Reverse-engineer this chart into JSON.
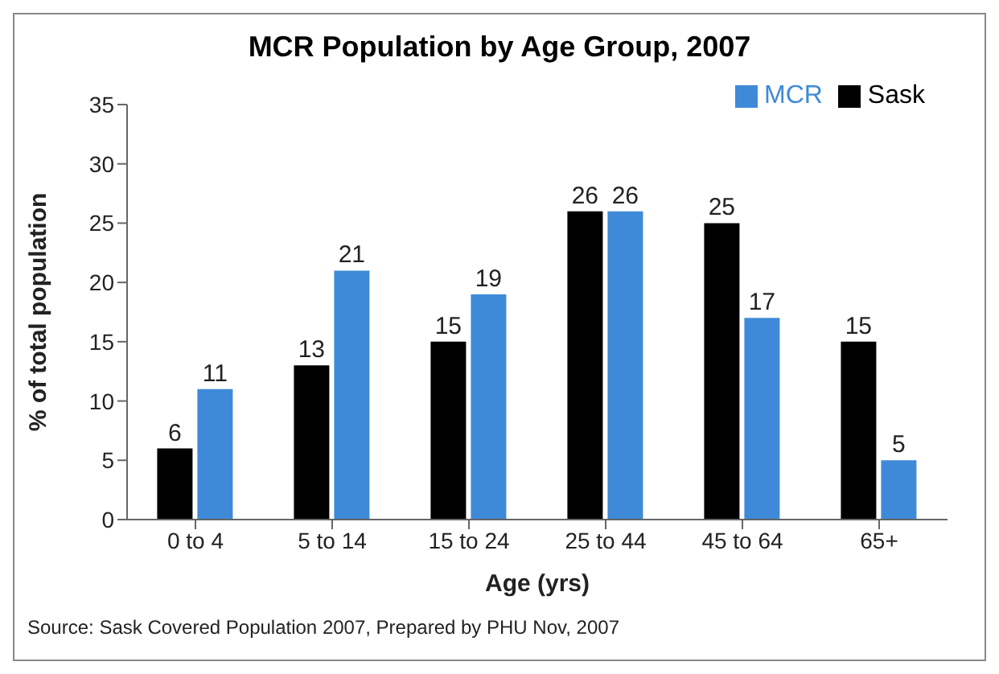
{
  "chart_data": {
    "type": "bar",
    "title": "MCR Population by Age Group, 2007",
    "xlabel": "Age (yrs)",
    "ylabel": "% of total population",
    "categories": [
      "0 to 4",
      "5 to 14",
      "15 to 24",
      "25 to 44",
      "45 to 64",
      "65+"
    ],
    "series": [
      {
        "name": "Sask",
        "color": "#000000",
        "values": [
          6,
          13,
          15,
          26,
          25,
          15
        ]
      },
      {
        "name": "MCR",
        "color": "#3f8ad8",
        "values": [
          11,
          21,
          19,
          26,
          17,
          5
        ]
      }
    ],
    "ylim": [
      0,
      35
    ],
    "yticks": [
      0,
      5,
      10,
      15,
      20,
      25,
      30,
      35
    ],
    "grid": false,
    "legend": "top right",
    "data_labels": true,
    "annotations": [
      "Source: Sask Covered Population 2007, Prepared by PHU Nov, 2007"
    ]
  }
}
